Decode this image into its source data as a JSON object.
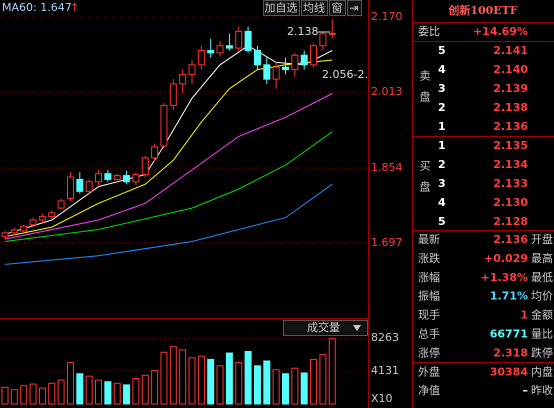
{
  "toolbar": {
    "indicator": "MA60: 1.647",
    "arrow": "↑",
    "buttons": [
      "加自选",
      "均线",
      "窗",
      "⇥"
    ]
  },
  "chart_data": [
    {
      "type": "candlestick",
      "ylim": [
        1.546,
        2.189
      ],
      "yticks": [
        1.697,
        1.854,
        2.013,
        {
          "value": 2.17,
          "label": "2.170"
        }
      ],
      "grid": true,
      "up_color": "#ff3232",
      "down_color": "#54fcfc",
      "open": [
        1.71,
        1.718,
        1.722,
        1.735,
        1.745,
        1.752,
        1.77,
        1.79,
        1.83,
        1.805,
        1.825,
        1.842,
        1.83,
        1.838,
        1.825,
        1.84,
        1.875,
        1.9,
        1.985,
        2.03,
        2.05,
        2.07,
        2.1,
        2.095,
        2.11,
        2.105,
        2.14,
        2.1,
        2.07,
        2.04,
        2.065,
        2.06,
        2.09,
        2.07,
        2.11,
        2.135
      ],
      "high": [
        1.722,
        1.728,
        1.735,
        1.75,
        1.758,
        1.765,
        1.79,
        1.845,
        1.845,
        1.83,
        1.85,
        1.85,
        1.842,
        1.848,
        1.845,
        1.88,
        1.905,
        1.99,
        2.04,
        2.06,
        2.08,
        2.11,
        2.125,
        2.12,
        2.135,
        2.15,
        2.15,
        2.11,
        2.085,
        2.075,
        2.085,
        2.095,
        2.1,
        2.115,
        2.14,
        2.165
      ],
      "low": [
        1.705,
        1.712,
        1.718,
        1.73,
        1.738,
        1.745,
        1.768,
        1.785,
        1.8,
        1.798,
        1.818,
        1.825,
        1.822,
        1.82,
        1.818,
        1.835,
        1.868,
        1.895,
        1.975,
        2.01,
        2.03,
        2.06,
        2.085,
        2.088,
        2.1,
        2.1,
        2.095,
        2.06,
        2.03,
        2.02,
        2.05,
        2.045,
        2.06,
        2.065,
        2.1,
        2.125
      ],
      "close": [
        1.718,
        1.724,
        1.732,
        1.745,
        1.752,
        1.76,
        1.785,
        1.835,
        1.805,
        1.825,
        1.842,
        1.83,
        1.838,
        1.825,
        1.84,
        1.875,
        1.898,
        1.985,
        2.03,
        2.05,
        2.07,
        2.1,
        2.095,
        2.11,
        2.105,
        2.14,
        2.1,
        2.07,
        2.04,
        2.065,
        2.06,
        2.09,
        2.07,
        2.11,
        2.135,
        2.136
      ],
      "lines": [
        {
          "color": "#ffffff",
          "x": [
            0,
            5,
            10,
            15,
            17,
            20,
            23,
            26,
            29,
            32,
            35
          ],
          "values": [
            1.715,
            1.745,
            1.815,
            1.84,
            1.9,
            2.0,
            2.07,
            2.11,
            2.075,
            2.07,
            2.1
          ]
        },
        {
          "color": "#ffff00",
          "x": [
            0,
            5,
            10,
            15,
            18,
            21,
            24,
            27,
            30,
            35
          ],
          "values": [
            1.71,
            1.73,
            1.78,
            1.82,
            1.87,
            1.95,
            2.02,
            2.06,
            2.07,
            2.08
          ]
        },
        {
          "color": "#ff40ff",
          "x": [
            0,
            10,
            15,
            20,
            25,
            30,
            35
          ],
          "values": [
            1.705,
            1.745,
            1.78,
            1.85,
            1.92,
            1.96,
            2.01
          ]
        },
        {
          "color": "#00e000",
          "x": [
            0,
            10,
            20,
            25,
            30,
            35
          ],
          "values": [
            1.7,
            1.725,
            1.77,
            1.81,
            1.86,
            1.93
          ]
        },
        {
          "color": "#1e90ff",
          "x": [
            0,
            10,
            20,
            30,
            35
          ],
          "values": [
            1.652,
            1.67,
            1.7,
            1.75,
            1.82
          ]
        }
      ],
      "annotations": [
        "2.138",
        "2.056-2."
      ]
    },
    {
      "type": "bar",
      "title": "成交量",
      "unit": "X10",
      "ylim": [
        0,
        10300
      ],
      "yticks": [
        4131,
        8263
      ],
      "values": [
        2100,
        1800,
        2300,
        2500,
        2000,
        2600,
        3000,
        5200,
        3800,
        3500,
        3000,
        2800,
        2600,
        2400,
        3200,
        3600,
        4200,
        6500,
        7200,
        6800,
        5800,
        6000,
        5600,
        4800,
        6400,
        5200,
        6600,
        4800,
        5400,
        4300,
        3800,
        4500,
        3900,
        5600,
        6200,
        8200
      ]
    }
  ],
  "quote": {
    "title": "创新100ETF",
    "ratio_label": "委比",
    "ratio": "+14.69%",
    "ask_label": "卖盘",
    "bid_label": "买盘",
    "asks": [
      {
        "level": 5,
        "price": "2.141"
      },
      {
        "level": 4,
        "price": "2.140"
      },
      {
        "level": 3,
        "price": "2.139"
      },
      {
        "level": 2,
        "price": "2.138"
      },
      {
        "level": 1,
        "price": "2.136"
      }
    ],
    "bids": [
      {
        "level": 1,
        "price": "2.135"
      },
      {
        "level": 2,
        "price": "2.134"
      },
      {
        "level": 3,
        "price": "2.133"
      },
      {
        "level": 4,
        "price": "2.130"
      },
      {
        "level": 5,
        "price": "2.128"
      }
    ],
    "stats": [
      {
        "label": "最新",
        "value": "2.136",
        "label2": "开盘",
        "color": "#ff3c3c"
      },
      {
        "label": "涨跌",
        "value": "+0.029",
        "label2": "最高",
        "color": "#ff3c3c"
      },
      {
        "label": "涨幅",
        "value": "+1.38%",
        "label2": "最低",
        "color": "#ff3c3c"
      },
      {
        "label": "振幅",
        "value": "1.71%",
        "label2": "均价",
        "color": "#54d8ff"
      },
      {
        "label": "现手",
        "value": "1",
        "label2": "金额",
        "color": "#ff3c3c"
      },
      {
        "label": "总手",
        "value": "66771",
        "label2": "量比",
        "color": "#54fcfc"
      },
      {
        "label": "涨停",
        "value": "2.318",
        "label2": "跌停",
        "color": "#ff3c3c"
      },
      {
        "label": "外盘",
        "value": "30384",
        "label2": "内盘",
        "color": "#ff3c3c"
      },
      {
        "label": "净值",
        "value": "–",
        "label2": "昨收",
        "color": "#ffffff"
      }
    ]
  }
}
